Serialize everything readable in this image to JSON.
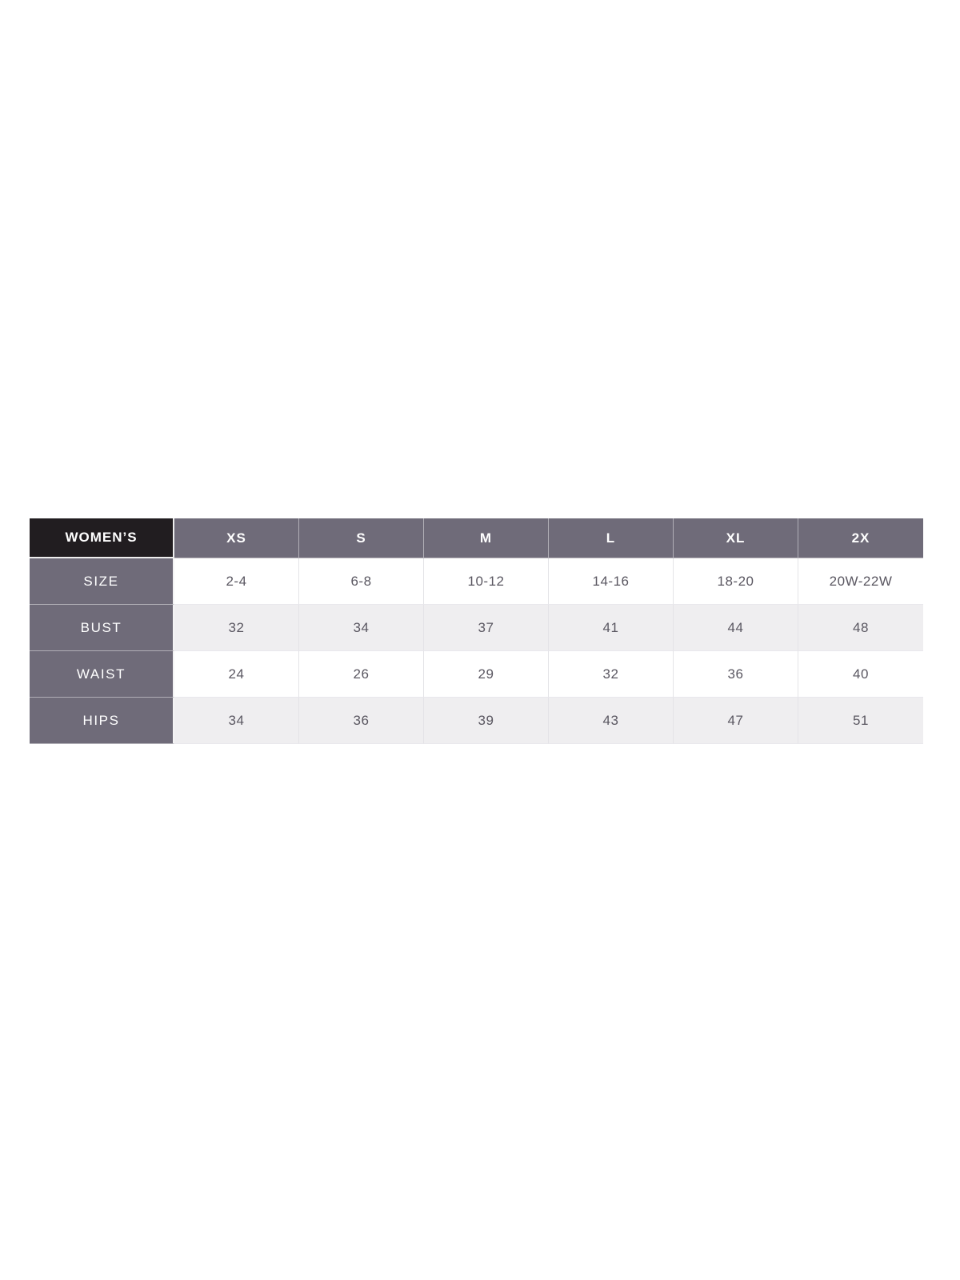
{
  "page": {
    "background": "#ffffff"
  },
  "table": {
    "corner_label": "WOMEN’S",
    "column_headers": [
      "XS",
      "S",
      "M",
      "L",
      "XL",
      "2X"
    ],
    "rows": [
      {
        "label": "SIZE",
        "values": [
          "2-4",
          "6-8",
          "10-12",
          "14-16",
          "18-20",
          "20W-22W"
        ]
      },
      {
        "label": "BUST",
        "values": [
          "32",
          "34",
          "37",
          "41",
          "44",
          "48"
        ]
      },
      {
        "label": "WAIST",
        "values": [
          "24",
          "26",
          "29",
          "32",
          "36",
          "40"
        ]
      },
      {
        "label": "HIPS",
        "values": [
          "34",
          "36",
          "39",
          "43",
          "47",
          "51"
        ]
      }
    ],
    "colors": {
      "corner_bg": "#211d20",
      "header_bg": "#6f6b79",
      "label_bg": "#6f6b79",
      "zebra_row_bg": "#efeef0",
      "white_row_bg": "#ffffff",
      "header_text": "#ffffff",
      "body_text": "#5a5761",
      "divider": "#e4e3e7"
    }
  },
  "chart_data": {
    "type": "table",
    "title": "WOMEN’S size chart",
    "columns": [
      "WOMEN’S",
      "XS",
      "S",
      "M",
      "L",
      "XL",
      "2X"
    ],
    "rows": [
      [
        "SIZE",
        "2-4",
        "6-8",
        "10-12",
        "14-16",
        "18-20",
        "20W-22W"
      ],
      [
        "BUST",
        "32",
        "34",
        "37",
        "41",
        "44",
        "48"
      ],
      [
        "WAIST",
        "24",
        "26",
        "29",
        "32",
        "36",
        "40"
      ],
      [
        "HIPS",
        "34",
        "36",
        "39",
        "43",
        "47",
        "51"
      ]
    ],
    "layout": {
      "zebra_striping": true,
      "header_style": "dark-corner-with-slate-columns"
    }
  }
}
